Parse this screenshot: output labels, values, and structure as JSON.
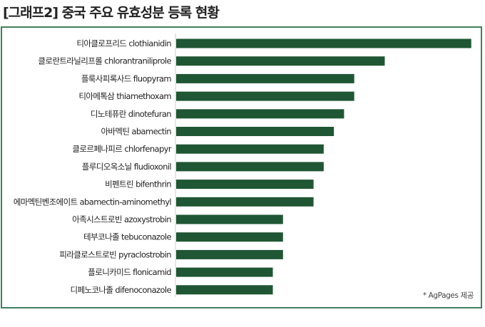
{
  "title": "[그래프2] 중국 주요 유효성분 등록 현황",
  "source_note": "* AgPages 제공",
  "colors": {
    "bar": "#1f5634",
    "frame": "#3f7f5f",
    "axis": "#cfcfcf"
  },
  "chart_data": {
    "type": "bar",
    "orientation": "horizontal",
    "title": "[그래프2] 중국 주요 유효성분 등록 현황",
    "xlabel": "",
    "ylabel": "",
    "grid": false,
    "xlim": [
      0,
      30
    ],
    "categories": [
      "티아클로프리드 clothianidin",
      "클로란트라닐리프롤 chlorantraniliprole",
      "플룩사피록사드 fluopyram",
      "티아메톡삼 thiamethoxam",
      "디노테퓨란 dinotefuran",
      "아바멕틴 abamectin",
      "클로르페나피르 chlorfenapyr",
      "플루디오옥소닐 fludioxonil",
      "비펜트린 bifenthrin",
      "에마멕틴벤조에이트 abamectin-aminomethyl",
      "아족시스트로빈 azoxystrobin",
      "테부코나졸 tebuconazole",
      "피라클로스트로빈 pyraclostrobin",
      "플로니카미드 flonicamid",
      "디페노코나졸 difenoconazole"
    ],
    "values": [
      29,
      20.5,
      17.5,
      17.5,
      16.5,
      15.5,
      14.5,
      14.5,
      13.5,
      13.5,
      10.5,
      10.5,
      10.5,
      9.5,
      9.5
    ]
  }
}
